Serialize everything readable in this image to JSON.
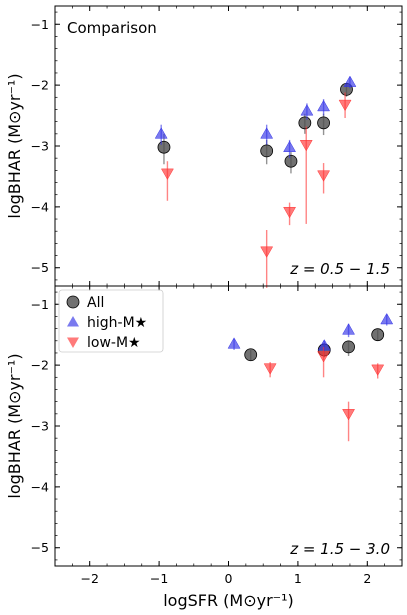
{
  "chart_data": [
    {
      "type": "scatter",
      "panel_label": "Comparison",
      "annotation": "z = 0.5 − 1.5",
      "ylabel": "logBHAR (M⊙yr⁻¹)",
      "xlim": [
        -2.5,
        2.5
      ],
      "ylim": [
        -5.3,
        -0.7
      ],
      "xticks": [
        -2,
        -1,
        0,
        1,
        2
      ],
      "yticks": [
        -5,
        -4,
        -3,
        -2,
        -1
      ],
      "series": [
        {
          "name": "All",
          "color": "#4d4d4d",
          "marker": "circle",
          "points": [
            {
              "x": -0.93,
              "y": -3.02,
              "err_lo": 0.28,
              "err_hi": 0.22
            },
            {
              "x": 0.55,
              "y": -3.08,
              "err_lo": 0.22,
              "err_hi": 0.18
            },
            {
              "x": 0.9,
              "y": -3.25,
              "err_lo": 0.2,
              "err_hi": 0.15
            },
            {
              "x": 1.1,
              "y": -2.62,
              "err_lo": 0.18,
              "err_hi": 0.15
            },
            {
              "x": 1.37,
              "y": -2.62,
              "err_lo": 0.2,
              "err_hi": 0.15
            },
            {
              "x": 1.7,
              "y": -2.07,
              "err_lo": 0.12,
              "err_hi": 0.1
            }
          ]
        },
        {
          "name": "high-M★",
          "color": "#3333e6",
          "marker": "triangle-up",
          "points": [
            {
              "x": -0.97,
              "y": -2.8,
              "err_lo": 0.18,
              "err_hi": 0.15
            },
            {
              "x": 0.55,
              "y": -2.8,
              "err_lo": 0.18,
              "err_hi": 0.15
            },
            {
              "x": 0.88,
              "y": -3.02,
              "err_lo": 0.18,
              "err_hi": 0.12
            },
            {
              "x": 1.13,
              "y": -2.42,
              "err_lo": 0.15,
              "err_hi": 0.12
            },
            {
              "x": 1.37,
              "y": -2.35,
              "err_lo": 0.15,
              "err_hi": 0.12
            },
            {
              "x": 1.75,
              "y": -1.95,
              "err_lo": 0.1,
              "err_hi": 0.08
            }
          ]
        },
        {
          "name": "low-M★",
          "color": "#ff3333",
          "marker": "triangle-down",
          "points": [
            {
              "x": -0.88,
              "y": -3.45,
              "err_lo": 0.45,
              "err_hi": 0.2
            },
            {
              "x": 0.55,
              "y": -4.73,
              "err_lo": 0.6,
              "err_hi": 0.35
            },
            {
              "x": 0.88,
              "y": -4.08,
              "err_lo": 0.22,
              "err_hi": 0.15
            },
            {
              "x": 1.12,
              "y": -2.98,
              "err_lo": 1.3,
              "err_hi": 0.3
            },
            {
              "x": 1.37,
              "y": -3.48,
              "err_lo": 0.3,
              "err_hi": 0.2
            },
            {
              "x": 1.68,
              "y": -2.32,
              "err_lo": 0.22,
              "err_hi": 0.2
            }
          ]
        }
      ]
    },
    {
      "type": "scatter",
      "annotation": "z = 1.5 − 3.0",
      "ylabel": "logBHAR (M⊙yr⁻¹)",
      "xlabel": "logSFR (M⊙yr⁻¹)",
      "xlim": [
        -2.5,
        2.5
      ],
      "ylim": [
        -5.3,
        -0.7
      ],
      "xticks": [
        -2,
        -1,
        0,
        1,
        2
      ],
      "yticks": [
        -5,
        -4,
        -3,
        -2,
        -1
      ],
      "legend_position": "top-left",
      "series": [
        {
          "name": "All",
          "color": "#4d4d4d",
          "marker": "circle",
          "points": [
            {
              "x": 0.32,
              "y": -1.83,
              "err_lo": 0.1,
              "err_hi": 0.08
            },
            {
              "x": 1.38,
              "y": -1.75,
              "err_lo": 0.12,
              "err_hi": 0.08
            },
            {
              "x": 1.73,
              "y": -1.7,
              "err_lo": 0.15,
              "err_hi": 0.1
            },
            {
              "x": 2.15,
              "y": -1.5,
              "err_lo": 0.1,
              "err_hi": 0.08
            }
          ]
        },
        {
          "name": "high-M★",
          "color": "#3333e6",
          "marker": "triangle-up",
          "points": [
            {
              "x": 0.08,
              "y": -1.65,
              "err_lo": 0.1,
              "err_hi": 0.08
            },
            {
              "x": 1.38,
              "y": -1.68,
              "err_lo": 0.1,
              "err_hi": 0.08
            },
            {
              "x": 1.73,
              "y": -1.42,
              "err_lo": 0.12,
              "err_hi": 0.1
            },
            {
              "x": 2.28,
              "y": -1.25,
              "err_lo": 0.1,
              "err_hi": 0.08
            }
          ]
        },
        {
          "name": "low-M★",
          "color": "#ff3333",
          "marker": "triangle-down",
          "points": [
            {
              "x": 0.6,
              "y": -2.05,
              "err_lo": 0.15,
              "err_hi": 0.1
            },
            {
              "x": 1.37,
              "y": -1.85,
              "err_lo": 0.35,
              "err_hi": 0.15
            },
            {
              "x": 1.73,
              "y": -2.8,
              "err_lo": 0.45,
              "err_hi": 0.2
            },
            {
              "x": 2.15,
              "y": -2.07,
              "err_lo": 0.15,
              "err_hi": 0.1
            }
          ]
        }
      ]
    }
  ]
}
